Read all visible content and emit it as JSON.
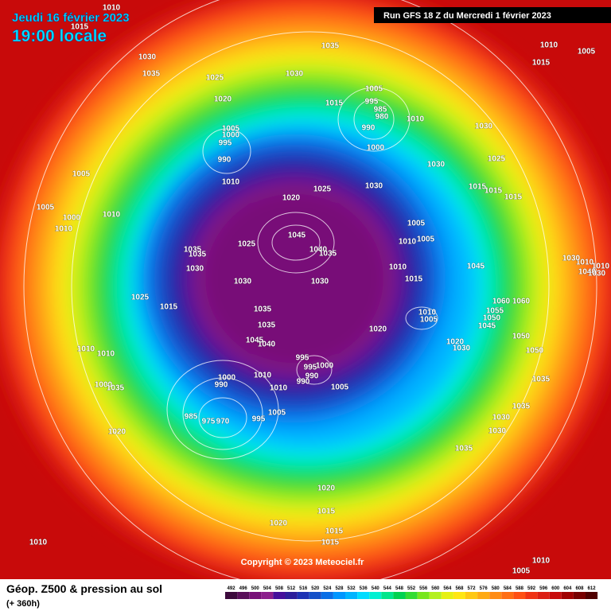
{
  "header": {
    "date": "Jeudi 16 février 2023",
    "time": "19:00 locale",
    "run": "Run GFS 18 Z du Mercredi 1 février 2023"
  },
  "copyright": "Copyright © 2023 Meteociel.fr",
  "legend": {
    "title": "Géop. Z500 & pression au sol",
    "subtitle": "(+ 360h)",
    "levels": [
      492,
      496,
      500,
      504,
      508,
      512,
      516,
      520,
      524,
      528,
      532,
      536,
      540,
      544,
      548,
      552,
      556,
      560,
      564,
      568,
      572,
      576,
      580,
      584,
      588,
      592,
      596,
      600,
      604,
      608,
      612
    ],
    "colors": [
      "#3c0a3c",
      "#5a0f5a",
      "#780f78",
      "#8c1e8c",
      "#460f9b",
      "#2d1e9b",
      "#1e32b4",
      "#1450c8",
      "#0a6ee6",
      "#0096ff",
      "#00b4ff",
      "#00dcff",
      "#00f0d2",
      "#00e68c",
      "#00d250",
      "#32dc32",
      "#78e61e",
      "#b4f01e",
      "#e6f014",
      "#ffe614",
      "#ffc814",
      "#ffaa14",
      "#ff8c14",
      "#ff6e14",
      "#ff5014",
      "#f03214",
      "#dc1e14",
      "#c80a0a",
      "#a00000",
      "#780000",
      "#500000"
    ]
  },
  "pressure_labels": [
    1010,
    1015,
    1030,
    1035,
    1035,
    1030,
    1025,
    1020,
    1005,
    1015,
    995,
    985,
    980,
    1010,
    990,
    1000,
    1030,
    1025,
    1030,
    1005,
    1000,
    995,
    990,
    1005,
    1010,
    1020,
    1025,
    1030,
    1015,
    1015,
    1015,
    1005,
    1000,
    1010,
    1010,
    1005,
    1010,
    1005,
    1045,
    1025,
    1040,
    1035,
    1035,
    1035,
    1030,
    1045,
    1010,
    1015,
    1030,
    1030,
    1025,
    1015,
    1035,
    1060,
    1060,
    1055,
    1050,
    1045,
    1010,
    1005,
    1035,
    1020,
    1045,
    1040,
    1050,
    1020,
    1030,
    1010,
    1010,
    1050,
    995,
    995,
    1000,
    990,
    990,
    1000,
    1010,
    1005,
    1010,
    1035,
    990,
    1000,
    1035,
    1005,
    995,
    985,
    975,
    970,
    1035,
    1030,
    1030,
    1020,
    1035,
    1020,
    1015,
    1020,
    1015,
    1015,
    1010,
    1010,
    1005,
    1010,
    1010,
    1030,
    1010,
    1015,
    1005,
    1040,
    1030
  ]
}
